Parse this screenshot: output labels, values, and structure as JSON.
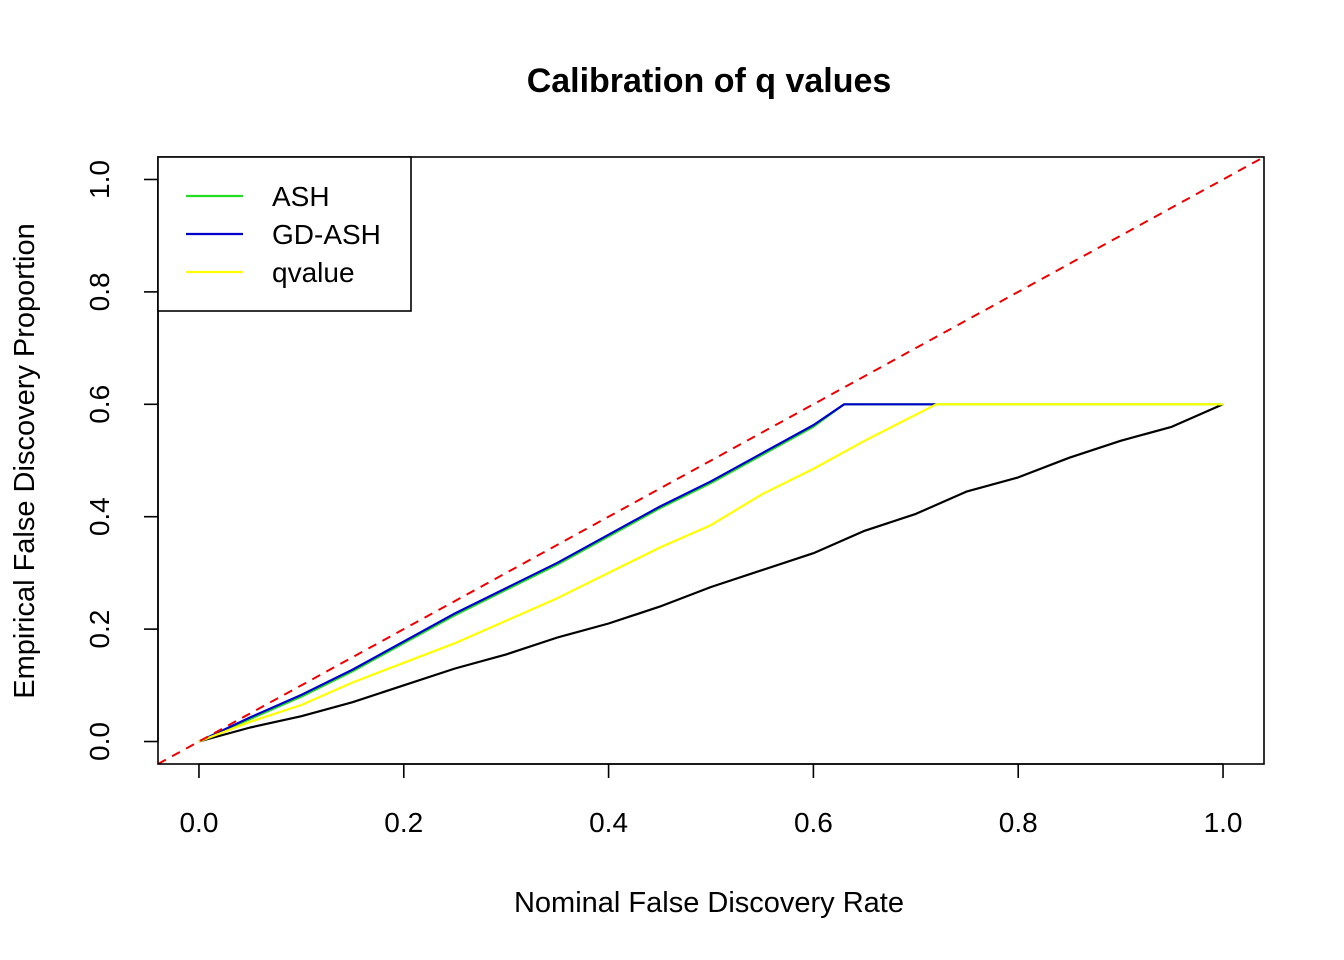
{
  "chart_data": {
    "type": "line",
    "title": "Calibration of q values",
    "xlabel": "Nominal False Discovery Rate",
    "ylabel": "Empirical False Discovery Proportion",
    "xlim": [
      -0.04,
      1.04
    ],
    "ylim": [
      -0.04,
      1.04
    ],
    "x_ticks": [
      0.0,
      0.2,
      0.4,
      0.6,
      0.8,
      1.0
    ],
    "x_tick_labels": [
      "0.0",
      "0.2",
      "0.4",
      "0.6",
      "0.8",
      "1.0"
    ],
    "y_ticks": [
      0.0,
      0.2,
      0.4,
      0.6,
      0.8,
      1.0
    ],
    "y_tick_labels": [
      "0.0",
      "0.2",
      "0.4",
      "0.6",
      "0.8",
      "1.0"
    ],
    "grid": false,
    "legend_position": "top-left",
    "series": [
      {
        "name": "",
        "color": "#000000",
        "style": "solid",
        "in_legend": false,
        "x": [
          0.0,
          0.05,
          0.1,
          0.15,
          0.2,
          0.25,
          0.3,
          0.35,
          0.4,
          0.45,
          0.5,
          0.55,
          0.6,
          0.65,
          0.7,
          0.75,
          0.8,
          0.85,
          0.9,
          0.95,
          1.0
        ],
        "y": [
          0.0,
          0.025,
          0.045,
          0.07,
          0.1,
          0.13,
          0.155,
          0.185,
          0.21,
          0.24,
          0.275,
          0.305,
          0.335,
          0.375,
          0.405,
          0.445,
          0.47,
          0.505,
          0.535,
          0.56,
          0.6
        ]
      },
      {
        "name": "ASH",
        "color": "#22dd22",
        "style": "solid",
        "in_legend": true,
        "x": [
          0.0,
          0.05,
          0.1,
          0.15,
          0.2,
          0.25,
          0.3,
          0.35,
          0.4,
          0.45,
          0.5,
          0.55,
          0.6,
          0.63,
          0.7,
          0.8,
          0.9,
          1.0
        ],
        "y": [
          0.0,
          0.04,
          0.08,
          0.125,
          0.175,
          0.225,
          0.27,
          0.315,
          0.365,
          0.415,
          0.46,
          0.51,
          0.56,
          0.6,
          0.6,
          0.6,
          0.6,
          0.6
        ]
      },
      {
        "name": "GD-ASH",
        "color": "#0000cc",
        "style": "solid",
        "in_legend": true,
        "x": [
          0.0,
          0.05,
          0.1,
          0.15,
          0.2,
          0.25,
          0.3,
          0.35,
          0.4,
          0.45,
          0.5,
          0.55,
          0.6,
          0.63,
          0.72
        ],
        "y": [
          0.0,
          0.043,
          0.083,
          0.128,
          0.178,
          0.228,
          0.273,
          0.318,
          0.368,
          0.418,
          0.463,
          0.513,
          0.563,
          0.6,
          0.6
        ]
      },
      {
        "name": "qvalue",
        "color": "#ffff00",
        "style": "solid",
        "in_legend": true,
        "x": [
          0.0,
          0.05,
          0.1,
          0.15,
          0.2,
          0.25,
          0.3,
          0.35,
          0.4,
          0.45,
          0.5,
          0.55,
          0.6,
          0.65,
          0.72,
          0.8,
          0.9,
          1.0
        ],
        "y": [
          0.0,
          0.035,
          0.065,
          0.105,
          0.14,
          0.175,
          0.215,
          0.255,
          0.3,
          0.345,
          0.385,
          0.44,
          0.485,
          0.535,
          0.6,
          0.6,
          0.6,
          0.6
        ]
      },
      {
        "name": "",
        "color": "#ee0000",
        "style": "dashed",
        "in_legend": false,
        "x": [
          -0.04,
          1.04
        ],
        "y": [
          -0.04,
          1.04
        ]
      }
    ]
  }
}
